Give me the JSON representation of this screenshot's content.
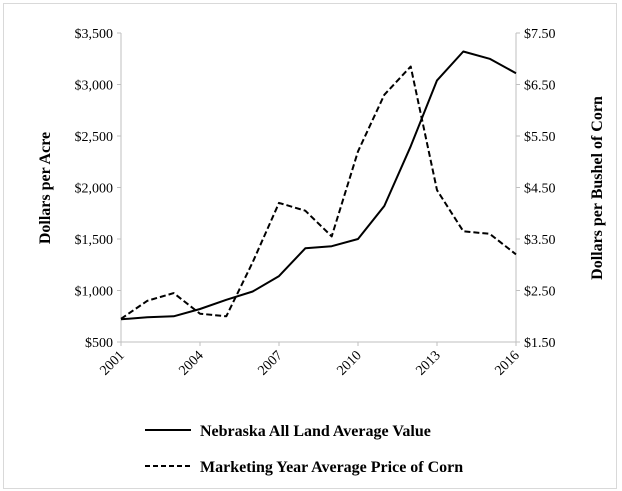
{
  "chart_data": {
    "type": "line",
    "title": "",
    "x": [
      2001,
      2002,
      2003,
      2004,
      2005,
      2006,
      2007,
      2008,
      2009,
      2010,
      2011,
      2012,
      2013,
      2014,
      2015,
      2016
    ],
    "xticks": [
      "2001",
      "2004",
      "2007",
      "2010",
      "2013",
      "2016"
    ],
    "xlim": [
      2001,
      2016
    ],
    "ylabel_left": "Dollars per Acre",
    "ylabel_right": "Dollars per Bushel of Corn",
    "yticks_left": [
      "$500",
      "$1,000",
      "$1,500",
      "$2,000",
      "$2,500",
      "$3,000",
      "$3,500"
    ],
    "yticks_right": [
      "$1.50",
      "$2.50",
      "$3.50",
      "$4.50",
      "$5.50",
      "$6.50",
      "$7.50"
    ],
    "ylim_left": [
      500,
      3500
    ],
    "ylim_right": [
      1.5,
      7.5
    ],
    "grid": false,
    "legend_position": "bottom",
    "series": [
      {
        "name": "Nebraska All Land Average Value",
        "axis": "left",
        "style": "solid",
        "color": "#000000",
        "values": [
          720,
          740,
          750,
          820,
          910,
          990,
          1140,
          1410,
          1430,
          1500,
          1820,
          2400,
          3040,
          3320,
          3250,
          3110
        ]
      },
      {
        "name": "Marketing Year Average Price of Corn",
        "axis": "right",
        "style": "dashed",
        "color": "#000000",
        "values": [
          1.95,
          2.3,
          2.45,
          2.05,
          2.0,
          3.05,
          4.2,
          4.05,
          3.55,
          5.2,
          6.3,
          6.85,
          4.45,
          3.65,
          3.6,
          3.2
        ]
      }
    ]
  }
}
